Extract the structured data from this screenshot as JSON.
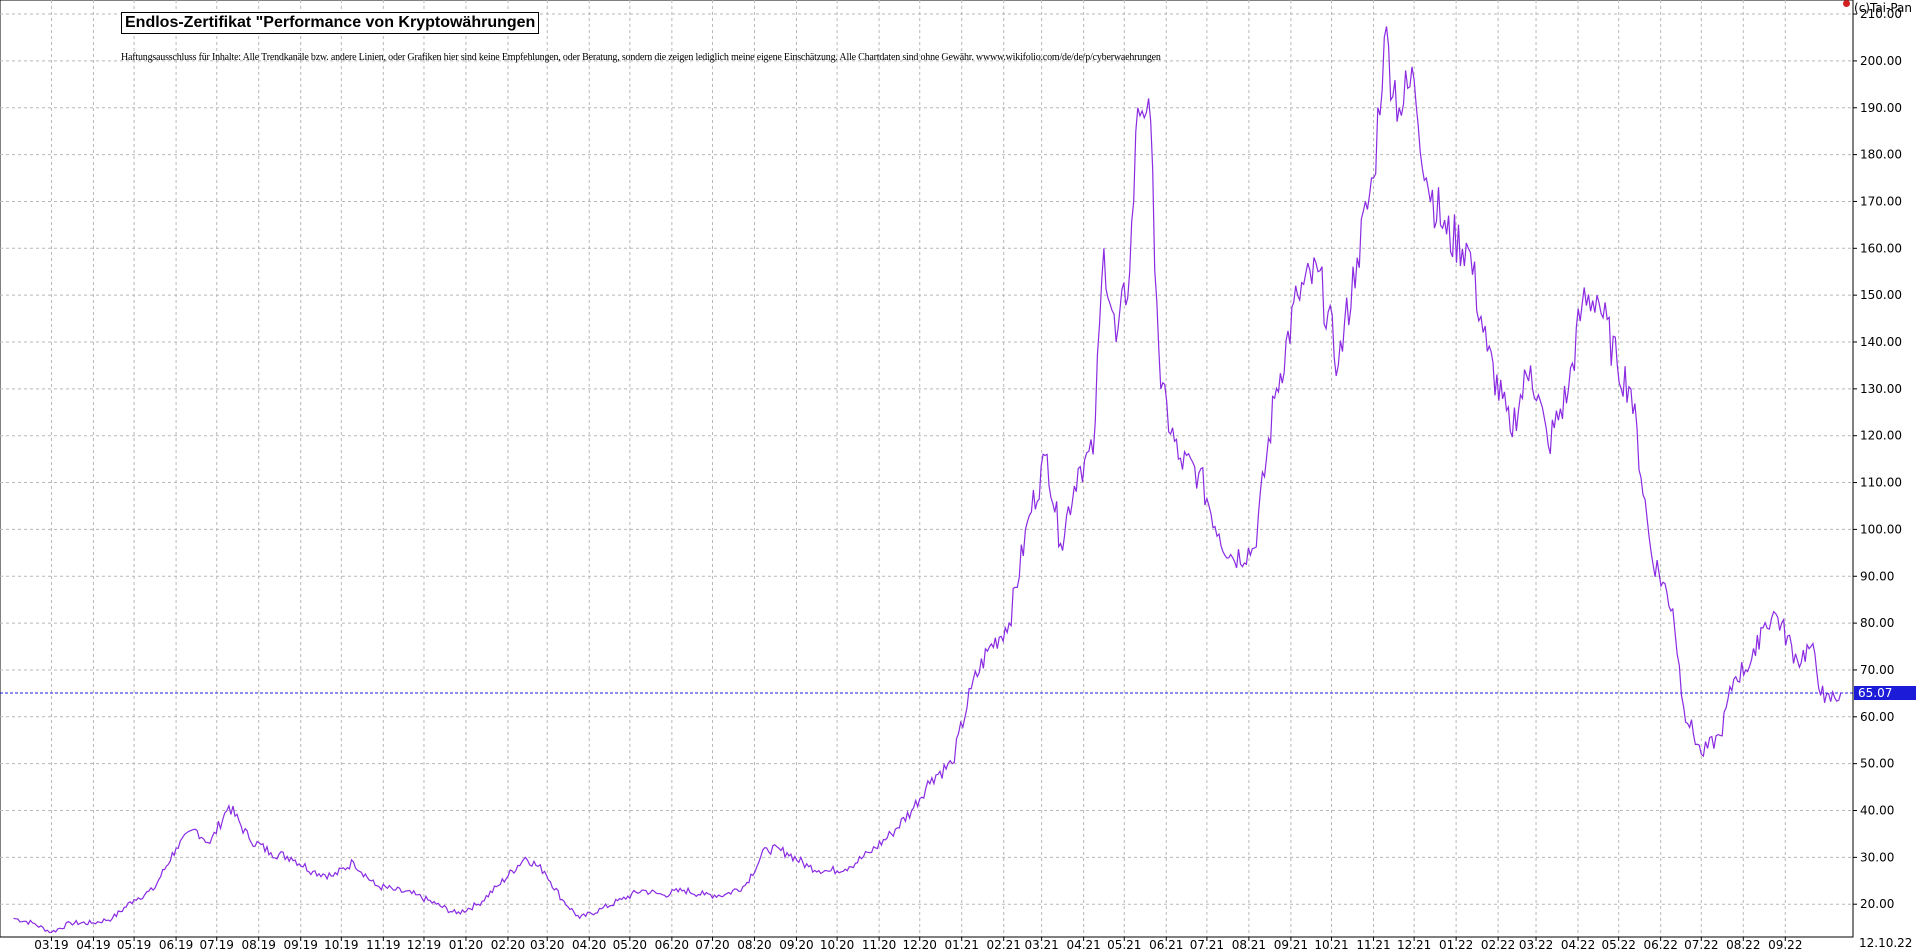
{
  "title": "Endlos-Zertifikat \"Performance von Kryptowährungen",
  "disclaimer": "Haftungsausschluss für Inhalte: Alle Trendkanäle bzw. andere Linien, oder Grafiken hier sind keine Empfehlungen, oder Beratung, sondern die zeigen lediglich meine eigene Einschätzung. Alle Chartdaten sind ohne Gewähr. wwww.wikifolio.com/de/de/p/cyberwaehrungen",
  "copyright": "(c)Tai-Pan",
  "last_value_label": "65.07",
  "current_date_label": "12.10.22",
  "colors": {
    "series": "#8a2be2",
    "last_line": "#1c1cd8",
    "grid": "#b8b8b8",
    "badge": "#1c1cd8"
  },
  "chart_data": {
    "type": "line",
    "title": "Endlos-Zertifikat \"Performance von Kryptowährungen",
    "xlabel": "",
    "ylabel": "",
    "ylim": [
      13,
      213
    ],
    "grid": true,
    "y_ticks": [
      20,
      30,
      40,
      50,
      60,
      70,
      80,
      90,
      100,
      110,
      120,
      130,
      140,
      150,
      160,
      170,
      180,
      190,
      200,
      210
    ],
    "y_tick_labels": [
      "20.00",
      "30.00",
      "40.00",
      "50.00",
      "60.00",
      "70.00",
      "80.00",
      "90.00",
      "100.00",
      "110.00",
      "120.00",
      "130.00",
      "140.00",
      "150.00",
      "160.00",
      "170.00",
      "180.00",
      "190.00",
      "200.00",
      "210.00"
    ],
    "x_tick_labels": [
      "03.19",
      "04.19",
      "05.19",
      "06.19",
      "07.19",
      "08.19",
      "09.19",
      "10.19",
      "11.19",
      "12.19",
      "01.20",
      "02.20",
      "03.20",
      "04.20",
      "05.20",
      "06.20",
      "07.20",
      "08.20",
      "09.20",
      "10.20",
      "11.20",
      "12.20",
      "01.21",
      "02.21",
      "03.21",
      "04.21",
      "05.21",
      "06.21",
      "07.21",
      "08.21",
      "09.21",
      "10.21",
      "11.21",
      "12.21",
      "01.22",
      "02.22",
      "03.22",
      "04.22",
      "05.22",
      "06.22",
      "07.22",
      "08.22",
      "09.22"
    ],
    "last_value": 65.07,
    "series": [
      {
        "x": [
          "2019-02-01",
          "2019-02-15",
          "2019-03-01",
          "2019-03-15",
          "2019-04-01",
          "2019-04-15",
          "2019-05-01",
          "2019-05-15",
          "2019-06-01",
          "2019-06-15",
          "2019-06-26",
          "2019-07-10",
          "2019-07-25",
          "2019-08-10",
          "2019-08-25",
          "2019-09-10",
          "2019-09-25",
          "2019-10-10",
          "2019-10-26",
          "2019-11-10",
          "2019-11-25",
          "2019-12-10",
          "2019-12-25",
          "2020-01-10",
          "2020-01-25",
          "2020-02-14",
          "2020-02-28",
          "2020-03-12",
          "2020-03-25",
          "2020-04-10",
          "2020-04-25",
          "2020-05-10",
          "2020-05-25",
          "2020-06-10",
          "2020-06-25",
          "2020-07-10",
          "2020-07-25",
          "2020-08-10",
          "2020-08-25",
          "2020-09-10",
          "2020-09-25",
          "2020-10-10",
          "2020-10-25",
          "2020-11-10",
          "2020-11-25",
          "2020-12-10",
          "2020-12-25",
          "2021-01-08",
          "2021-01-20",
          "2021-02-05",
          "2021-02-20",
          "2021-03-05",
          "2021-03-15",
          "2021-03-28",
          "2021-04-08",
          "2021-04-16",
          "2021-04-25",
          "2021-05-05",
          "2021-05-11",
          "2021-05-19",
          "2021-05-28",
          "2021-06-10",
          "2021-06-25",
          "2021-07-10",
          "2021-07-20",
          "2021-08-05",
          "2021-08-20",
          "2021-09-06",
          "2021-09-21",
          "2021-10-06",
          "2021-10-20",
          "2021-11-01",
          "2021-11-09",
          "2021-11-20",
          "2021-12-01",
          "2021-12-10",
          "2021-12-25",
          "2022-01-10",
          "2022-01-24",
          "2022-02-10",
          "2022-02-25",
          "2022-03-10",
          "2022-03-25",
          "2022-04-04",
          "2022-04-15",
          "2022-04-30",
          "2022-05-10",
          "2022-05-25",
          "2022-06-10",
          "2022-06-18",
          "2022-07-01",
          "2022-07-15",
          "2022-07-25",
          "2022-08-10",
          "2022-08-14",
          "2022-08-25",
          "2022-09-10",
          "2022-09-20",
          "2022-09-30",
          "2022-10-12"
        ],
        "values": [
          17,
          16,
          14,
          16,
          16,
          17,
          21,
          23,
          32,
          36,
          33,
          41,
          34,
          31,
          30,
          27,
          26,
          29,
          24,
          23,
          22,
          20,
          18,
          20,
          24,
          30,
          27,
          21,
          17,
          19,
          21,
          23,
          22,
          23,
          22,
          22,
          24,
          32,
          31,
          28,
          27,
          28,
          31,
          35,
          40,
          47,
          50,
          66,
          74,
          80,
          103,
          116,
          97,
          113,
          116,
          160,
          140,
          155,
          190,
          192,
          130,
          115,
          112,
          99,
          94,
          96,
          128,
          150,
          155,
          135,
          158,
          175,
          205,
          190,
          196,
          175,
          163,
          160,
          138,
          121,
          135,
          118,
          130,
          148,
          150,
          135,
          130,
          95,
          83,
          62,
          52,
          56,
          68,
          73,
          79,
          82,
          72,
          75,
          63,
          65.07
        ]
      }
    ]
  }
}
